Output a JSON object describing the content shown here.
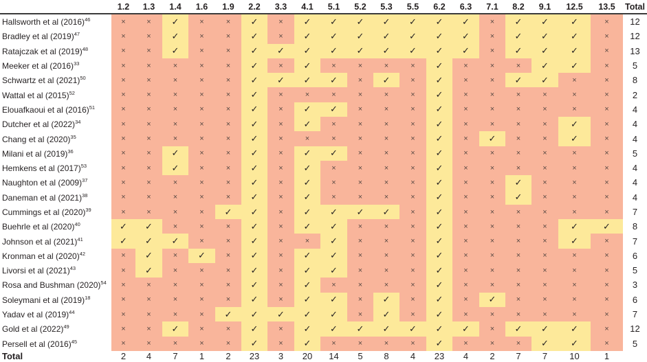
{
  "colors": {
    "met": "#fde99a",
    "not_met": "#f9b59b"
  },
  "marks": {
    "met": "✓",
    "not_met": "×"
  },
  "columns": [
    "1.2",
    "1.3",
    "1.4",
    "1.6",
    "1.9",
    "2.2",
    "3.3",
    "4.1",
    "5.1",
    "5.2",
    "5.3",
    "5.5",
    "6.2",
    "6.3",
    "7.1",
    "8.2",
    "9.1",
    "12.5",
    "13.5"
  ],
  "total_label": "Total",
  "rows": [
    {
      "study": "Hallsworth et al (2016)",
      "ref": "46",
      "met": [
        "1.4",
        "2.2",
        "4.1",
        "5.1",
        "5.2",
        "5.3",
        "5.5",
        "6.2",
        "6.3",
        "8.2",
        "9.1",
        "12.5"
      ],
      "total": "12"
    },
    {
      "study": "Bradley et al (2019)",
      "ref": "47",
      "met": [
        "1.4",
        "2.2",
        "4.1",
        "5.1",
        "5.2",
        "5.3",
        "5.5",
        "6.2",
        "6.3",
        "8.2",
        "9.1",
        "12.5"
      ],
      "total": "12"
    },
    {
      "study": "Ratajczak et al (2019)",
      "ref": "48",
      "met": [
        "1.4",
        "2.2",
        "3.3",
        "4.1",
        "5.1",
        "5.2",
        "5.3",
        "5.5",
        "6.2",
        "6.3",
        "8.2",
        "9.1",
        "12.5"
      ],
      "total": "13"
    },
    {
      "study": "Meeker et al (2016)",
      "ref": "33",
      "met": [
        "2.2",
        "4.1",
        "6.2",
        "9.1",
        "12.5"
      ],
      "total": "5"
    },
    {
      "study": "Schwartz et al (2021)",
      "ref": "50",
      "met": [
        "2.2",
        "3.3",
        "4.1",
        "5.1",
        "5.3",
        "6.2",
        "8.2",
        "9.1"
      ],
      "total": "8"
    },
    {
      "study": "Wattal et al (2015)",
      "ref": "52",
      "met": [
        "2.2",
        "6.2"
      ],
      "total": "2"
    },
    {
      "study": "Elouafkaoui et al (2016)",
      "ref": "51",
      "met": [
        "2.2",
        "4.1",
        "5.1",
        "6.2"
      ],
      "total": "4"
    },
    {
      "study": "Dutcher et al (2022)",
      "ref": "34",
      "met": [
        "2.2",
        "4.1",
        "6.2",
        "12.5"
      ],
      "total": "4"
    },
    {
      "study": "Chang et al (2020)",
      "ref": "35",
      "met": [
        "2.2",
        "6.2",
        "7.1",
        "12.5"
      ],
      "total": "4"
    },
    {
      "study": "Milani et al (2019)",
      "ref": "36",
      "met": [
        "1.4",
        "2.2",
        "4.1",
        "5.1",
        "6.2"
      ],
      "total": "5"
    },
    {
      "study": "Hemkens et al (2017)",
      "ref": "53",
      "met": [
        "1.4",
        "2.2",
        "4.1",
        "6.2"
      ],
      "total": "4"
    },
    {
      "study": "Naughton et al (2009)",
      "ref": "37",
      "met": [
        "2.2",
        "4.1",
        "6.2",
        "8.2"
      ],
      "total": "4"
    },
    {
      "study": "Daneman et al (2021)",
      "ref": "38",
      "met": [
        "2.2",
        "4.1",
        "6.2",
        "8.2"
      ],
      "total": "4"
    },
    {
      "study": "Cummings et al (2020)",
      "ref": "39",
      "met": [
        "1.9",
        "2.2",
        "4.1",
        "5.1",
        "5.2",
        "5.3",
        "6.2"
      ],
      "total": "7"
    },
    {
      "study": "Buehrle et al (2020)",
      "ref": "40",
      "met": [
        "1.2",
        "1.3",
        "2.2",
        "4.1",
        "5.1",
        "6.2",
        "12.5",
        "13.5"
      ],
      "total": "8"
    },
    {
      "study": "Johnson et al (2021)",
      "ref": "41",
      "met": [
        "1.2",
        "1.3",
        "1.4",
        "2.2",
        "5.1",
        "6.2",
        "12.5"
      ],
      "total": "7"
    },
    {
      "study": "Kronman et al (2020)",
      "ref": "42",
      "met": [
        "1.3",
        "1.6",
        "2.2",
        "4.1",
        "5.1",
        "6.2"
      ],
      "total": "6"
    },
    {
      "study": "Livorsi et al (2021)",
      "ref": "43",
      "met": [
        "1.3",
        "2.2",
        "4.1",
        "5.1",
        "6.2"
      ],
      "total": "5"
    },
    {
      "study": "Rosa and Bushman (2020)",
      "ref": "54",
      "met": [
        "2.2",
        "4.1",
        "6.2"
      ],
      "total": "3"
    },
    {
      "study": "Soleymani et al (2019)",
      "ref": "18",
      "met": [
        "2.2",
        "4.1",
        "5.1",
        "5.3",
        "6.2",
        "7.1"
      ],
      "total": "6"
    },
    {
      "study": "Yadav et al (2019)",
      "ref": "44",
      "met": [
        "1.9",
        "2.2",
        "3.3",
        "4.1",
        "5.1",
        "5.3",
        "6.2"
      ],
      "total": "7"
    },
    {
      "study": "Gold et al (2022)",
      "ref": "49",
      "met": [
        "1.4",
        "2.2",
        "4.1",
        "5.1",
        "5.2",
        "5.3",
        "5.5",
        "6.2",
        "6.3",
        "8.2",
        "9.1",
        "12.5"
      ],
      "total": "12"
    },
    {
      "study": "Persell et al (2016)",
      "ref": "45",
      "met": [
        "2.2",
        "4.1",
        "6.2",
        "9.1",
        "12.5"
      ],
      "total": "5"
    }
  ],
  "column_totals": [
    "2",
    "4",
    "7",
    "1",
    "2",
    "23",
    "3",
    "20",
    "14",
    "5",
    "8",
    "4",
    "23",
    "4",
    "2",
    "7",
    "7",
    "10",
    "1"
  ]
}
